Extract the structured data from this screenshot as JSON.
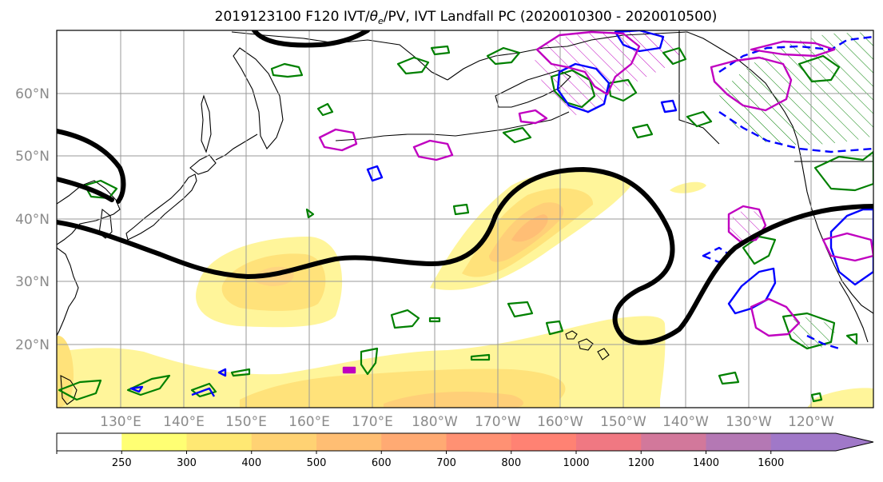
{
  "title": "2019123100 F120 IVT/θe/PV, IVT Landfall PC (2020010300 - 2020010500)",
  "title_parts": {
    "prefix": "2019123100 F120 IVT/",
    "theta": "θ",
    "theta_sub": "e",
    "suffix": "/PV, IVT Landfall PC (2020010300 - 2020010500)"
  },
  "lat_labels": [
    "60°N",
    "50°N",
    "40°N",
    "30°N",
    "20°N"
  ],
  "lon_labels": [
    "130°E",
    "140°E",
    "150°E",
    "160°E",
    "170°E",
    "180°W",
    "170°W",
    "160°W",
    "150°W",
    "140°W",
    "130°W",
    "120°W"
  ],
  "colorbar": {
    "ticks": [
      "250",
      "300",
      "400",
      "500",
      "600",
      "700",
      "800",
      "1000",
      "1200",
      "1400",
      "1600"
    ],
    "colors": [
      "#ffffff",
      "#ffff73",
      "#ffe873",
      "#ffd273",
      "#ffbe73",
      "#ffaa73",
      "#ff9173",
      "#ff8273",
      "#f07882",
      "#d2789b",
      "#b478b4",
      "#a078c8"
    ],
    "extend": "max"
  },
  "colors": {
    "ivt_levels": [
      "#fff59a",
      "#ffe27a",
      "#ffcf78",
      "#ffbe75"
    ],
    "green_contours": "#008000",
    "blue_contours": "#0000ff",
    "magenta_contours": "#c000c0",
    "jet_contour": "#000000",
    "grid": "#9a9a9a",
    "axis_labels": "#8a8a8a"
  }
}
